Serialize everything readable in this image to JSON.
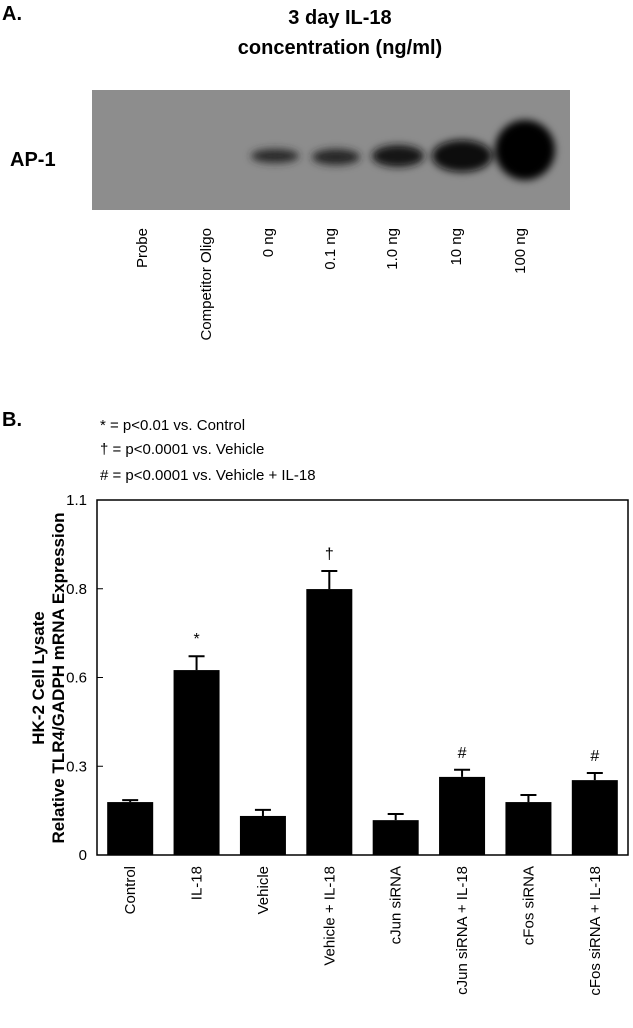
{
  "panel_a": {
    "label": "A.",
    "title_lines": [
      "3 day IL-18",
      "concentration (ng/ml)"
    ],
    "band_label": "AP-1",
    "lanes": [
      "Probe",
      "Competitor Oligo",
      "0 ng",
      "0.1 ng",
      "1.0 ng",
      "10 ng",
      "100 ng"
    ]
  },
  "chart_data": {
    "type": "bar",
    "panel_label": "B.",
    "footnotes": [
      "*  = p<0.01 vs. Control",
      "†  = p<0.0001 vs. Vehicle",
      "#  = p<0.0001 vs. Vehicle + IL-18"
    ],
    "y_label_lines": [
      "HK-2 Cell Lysate",
      "Relative TLR4/GADPH mRNA Expression"
    ],
    "categories": [
      "Control",
      "IL-18",
      "Vehicle",
      "Vehicle + IL-18",
      "cJun siRNA",
      "cJun siRNA + IL-18",
      "cFos siRNA",
      "cFos siRNA + IL-18"
    ],
    "values": [
      0.164,
      0.573,
      0.121,
      0.824,
      0.108,
      0.242,
      0.164,
      0.232
    ],
    "errors": [
      0.006,
      0.043,
      0.019,
      0.056,
      0.019,
      0.022,
      0.022,
      0.022
    ],
    "significance": [
      null,
      "*",
      null,
      "†",
      null,
      "#",
      null,
      "#"
    ],
    "color": "#000000",
    "ylim": [
      0,
      1.1
    ],
    "yticks": [
      0,
      {
        "value": 0.275,
        "label": "0.3"
      },
      {
        "value": 0.55,
        "label": "0.6"
      },
      {
        "value": 0.825,
        "label": "0.8"
      },
      1.1
    ]
  }
}
